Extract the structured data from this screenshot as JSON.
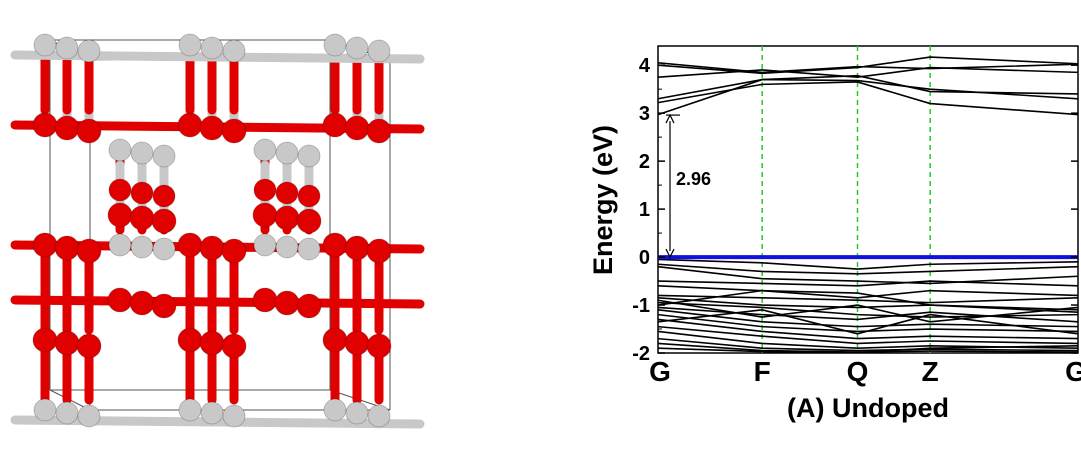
{
  "structure": {
    "colors": {
      "oxygen": "#e00000",
      "metal": "#c8c8c8",
      "cell_edge": "#555555"
    }
  },
  "chart_data": {
    "type": "line",
    "xlabel": "(A) Undoped",
    "ylabel": "Energy (eV)",
    "ylim": [
      -2,
      4.4
    ],
    "yticks": [
      -2,
      -1,
      0,
      1,
      2,
      3,
      4
    ],
    "x_points": [
      "G",
      "F",
      "Q",
      "Z",
      "G"
    ],
    "x_positions": [
      0,
      0.248,
      0.475,
      0.648,
      1.0
    ],
    "fermi_level": 0,
    "band_gap_label": "2.96",
    "band_gap": [
      0,
      2.96
    ],
    "colors": {
      "bands": "#000000",
      "fermi": "#1010e0",
      "kpath": "#22cc22",
      "gap_arrow": "#000000"
    },
    "series": [
      {
        "values": [
          4.05,
          3.85,
          3.97,
          3.93,
          4.02
        ]
      },
      {
        "values": [
          4.0,
          3.83,
          3.95,
          4.17,
          4.03
        ]
      },
      {
        "values": [
          3.75,
          3.9,
          3.75,
          3.95,
          3.85
        ]
      },
      {
        "values": [
          3.3,
          3.7,
          3.68,
          3.5,
          3.3
        ]
      },
      {
        "values": [
          3.22,
          3.6,
          3.65,
          3.2,
          2.97
        ]
      },
      {
        "values": [
          2.97,
          3.7,
          3.78,
          3.45,
          3.4
        ]
      },
      {
        "values": [
          0.0,
          0.0,
          0.0,
          0.0,
          0.0
        ]
      },
      {
        "values": [
          -0.05,
          -0.12,
          -0.25,
          -0.15,
          -0.1
        ]
      },
      {
        "values": [
          -0.15,
          -0.3,
          -0.35,
          -0.3,
          -0.2
        ]
      },
      {
        "values": [
          -0.2,
          -0.45,
          -0.5,
          -0.55,
          -0.4
        ]
      },
      {
        "values": [
          -0.5,
          -0.55,
          -0.6,
          -0.5,
          -0.6
        ]
      },
      {
        "values": [
          -0.6,
          -0.7,
          -0.85,
          -0.7,
          -0.8
        ]
      },
      {
        "values": [
          -0.8,
          -0.85,
          -0.9,
          -0.95,
          -0.85
        ]
      },
      {
        "values": [
          -0.85,
          -1.0,
          -1.05,
          -1.0,
          -1.1
        ]
      },
      {
        "values": [
          -0.95,
          -1.05,
          -1.2,
          -1.25,
          -1.2
        ]
      },
      {
        "values": [
          -1.05,
          -1.2,
          -1.3,
          -1.15,
          -1.35
        ]
      },
      {
        "values": [
          -1.1,
          -1.35,
          -1.45,
          -1.4,
          -1.45
        ]
      },
      {
        "values": [
          -1.2,
          -1.45,
          -1.55,
          -1.5,
          -1.55
        ]
      },
      {
        "values": [
          -1.3,
          -1.55,
          -1.7,
          -1.65,
          -1.7
        ]
      },
      {
        "values": [
          -1.45,
          -1.65,
          -1.8,
          -1.75,
          -1.8
        ]
      },
      {
        "values": [
          -1.55,
          -1.8,
          -1.9,
          -1.85,
          -1.9
        ]
      },
      {
        "values": [
          -1.7,
          -1.9,
          -1.95,
          -1.92,
          -1.95
        ]
      },
      {
        "values": [
          -1.8,
          -1.95,
          -1.98,
          -1.96,
          -1.98
        ]
      },
      {
        "values": [
          -1.9,
          -1.97,
          -1.99,
          -1.9,
          -1.85
        ]
      },
      {
        "values": [
          -1.0,
          -0.7,
          -0.75,
          -1.0,
          -1.15
        ]
      },
      {
        "values": [
          -0.9,
          -1.25,
          -1.0,
          -1.35,
          -1.05
        ]
      },
      {
        "values": [
          -1.35,
          -1.1,
          -1.6,
          -1.2,
          -1.6
        ]
      }
    ]
  }
}
